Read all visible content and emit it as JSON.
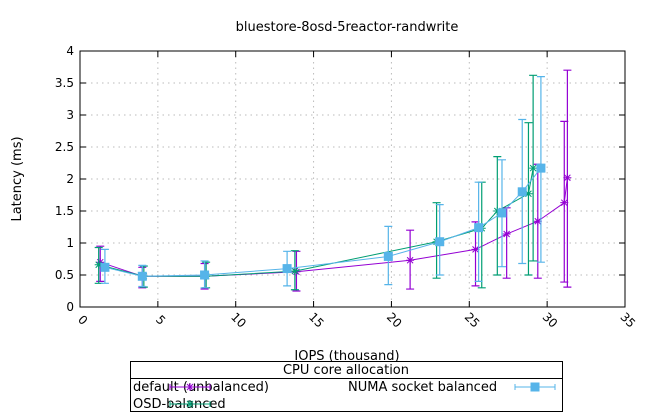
{
  "chart_data": {
    "type": "line",
    "title": "bluestore-8osd-5reactor-randwrite",
    "xlabel": "IOPS (thousand)",
    "ylabel": "Latency (ms)",
    "xlim": [
      0,
      35
    ],
    "ylim": [
      0,
      4
    ],
    "xticks": [
      0,
      5,
      10,
      15,
      20,
      25,
      30,
      35
    ],
    "yticks": [
      0,
      0.5,
      1,
      1.5,
      2,
      2.5,
      3,
      3.5,
      4
    ],
    "ytick_labels": [
      "0",
      "0.5",
      "1",
      "1.5",
      "2",
      "2.5",
      "3",
      "3.5",
      "4"
    ],
    "grid": true,
    "legend_title": "CPU core allocation",
    "legend_placement": "bottom",
    "series": [
      {
        "name": "default (unbalanced)",
        "color": "#9400d3",
        "marker": "plus-cross",
        "points": [
          {
            "x": 1.3,
            "y": 0.7,
            "lo": 0.4,
            "hi": 0.95
          },
          {
            "x": 4.0,
            "y": 0.48,
            "lo": 0.3,
            "hi": 0.62
          },
          {
            "x": 8.0,
            "y": 0.48,
            "lo": 0.28,
            "hi": 0.68
          },
          {
            "x": 13.9,
            "y": 0.55,
            "lo": 0.25,
            "hi": 0.87
          },
          {
            "x": 21.2,
            "y": 0.73,
            "lo": 0.28,
            "hi": 1.2
          },
          {
            "x": 25.4,
            "y": 0.9,
            "lo": 0.33,
            "hi": 1.33
          },
          {
            "x": 27.4,
            "y": 1.14,
            "lo": 0.45,
            "hi": 1.55
          },
          {
            "x": 29.4,
            "y": 1.34,
            "lo": 0.45,
            "hi": 2.23
          },
          {
            "x": 31.1,
            "y": 1.63,
            "lo": 0.39,
            "hi": 2.9
          },
          {
            "x": 31.3,
            "y": 2.02,
            "lo": 0.31,
            "hi": 3.7
          }
        ]
      },
      {
        "name": "OSD-balanced",
        "color": "#009e73",
        "marker": "star",
        "points": [
          {
            "x": 1.2,
            "y": 0.66,
            "lo": 0.37,
            "hi": 0.93
          },
          {
            "x": 4.1,
            "y": 0.48,
            "lo": 0.31,
            "hi": 0.64
          },
          {
            "x": 8.1,
            "y": 0.48,
            "lo": 0.3,
            "hi": 0.7
          },
          {
            "x": 13.8,
            "y": 0.56,
            "lo": 0.27,
            "hi": 0.88
          },
          {
            "x": 22.9,
            "y": 1.02,
            "lo": 0.45,
            "hi": 1.63
          },
          {
            "x": 25.8,
            "y": 1.23,
            "lo": 0.3,
            "hi": 1.95
          },
          {
            "x": 26.8,
            "y": 1.5,
            "lo": 0.5,
            "hi": 2.35
          },
          {
            "x": 28.8,
            "y": 1.77,
            "lo": 0.5,
            "hi": 2.88
          },
          {
            "x": 29.1,
            "y": 2.17,
            "lo": 0.72,
            "hi": 3.62
          }
        ]
      },
      {
        "name": "NUMA socket balanced",
        "color": "#56b4e9",
        "marker": "square",
        "points": [
          {
            "x": 1.6,
            "y": 0.62,
            "lo": 0.37,
            "hi": 0.9
          },
          {
            "x": 4.0,
            "y": 0.48,
            "lo": 0.32,
            "hi": 0.65
          },
          {
            "x": 8.0,
            "y": 0.5,
            "lo": 0.3,
            "hi": 0.72
          },
          {
            "x": 13.3,
            "y": 0.6,
            "lo": 0.33,
            "hi": 0.87
          },
          {
            "x": 19.8,
            "y": 0.79,
            "lo": 0.35,
            "hi": 1.26
          },
          {
            "x": 23.1,
            "y": 1.02,
            "lo": 0.5,
            "hi": 1.6
          },
          {
            "x": 25.6,
            "y": 1.24,
            "lo": 0.4,
            "hi": 1.95
          },
          {
            "x": 27.1,
            "y": 1.47,
            "lo": 0.63,
            "hi": 2.3
          },
          {
            "x": 28.4,
            "y": 1.8,
            "lo": 0.68,
            "hi": 2.93
          },
          {
            "x": 29.6,
            "y": 2.17,
            "lo": 0.7,
            "hi": 3.6
          }
        ]
      }
    ]
  }
}
